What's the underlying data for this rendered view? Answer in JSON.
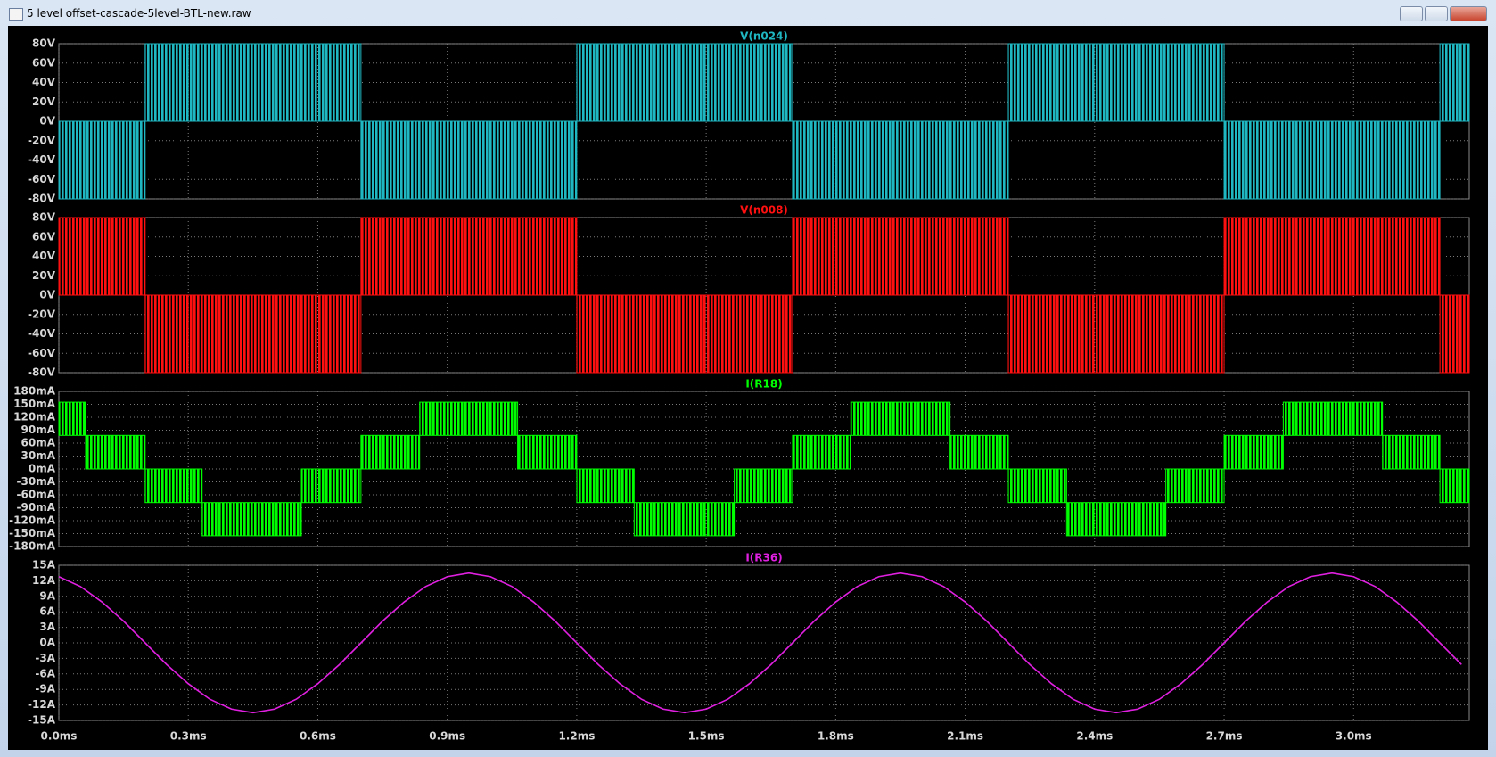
{
  "window": {
    "title": "5 level offset-cascade-5level-BTL-new.raw"
  },
  "chart_data": [
    {
      "type": "step",
      "title": "V(n024)",
      "color": "#1fb8c2",
      "bins": [
        0,
        0.2,
        0.7,
        1.2,
        1.7,
        2.2,
        2.7,
        3.2,
        3.268
      ],
      "low": [
        -80,
        0,
        -80,
        0,
        -80,
        0,
        -80,
        0
      ],
      "high": [
        0,
        80,
        0,
        80,
        0,
        80,
        0,
        80
      ],
      "ylim": [
        -80,
        80
      ],
      "yticks": [
        {
          "value": -80,
          "label": "-80V"
        },
        {
          "value": -60,
          "label": "-60V"
        },
        {
          "value": -40,
          "label": "-40V"
        },
        {
          "value": -20,
          "label": "-20V"
        },
        {
          "value": 0,
          "label": "0V"
        },
        {
          "value": 20,
          "label": "20V"
        },
        {
          "value": 40,
          "label": "40V"
        },
        {
          "value": 60,
          "label": "60V"
        },
        {
          "value": 80,
          "label": "80V"
        }
      ]
    },
    {
      "type": "step",
      "title": "V(n008)",
      "color": "#ff1010",
      "bins": [
        0,
        0.2,
        0.7,
        1.2,
        1.7,
        2.2,
        2.7,
        3.2,
        3.268
      ],
      "low": [
        0,
        -80,
        0,
        -80,
        0,
        -80,
        0,
        -80
      ],
      "high": [
        80,
        0,
        80,
        0,
        80,
        0,
        80,
        0
      ],
      "ylim": [
        -80,
        80
      ],
      "yticks": [
        {
          "value": -80,
          "label": "-80V"
        },
        {
          "value": -60,
          "label": "-60V"
        },
        {
          "value": -40,
          "label": "-40V"
        },
        {
          "value": -20,
          "label": "-20V"
        },
        {
          "value": 0,
          "label": "0V"
        },
        {
          "value": 20,
          "label": "20V"
        },
        {
          "value": 40,
          "label": "40V"
        },
        {
          "value": 60,
          "label": "60V"
        },
        {
          "value": 80,
          "label": "80V"
        }
      ]
    },
    {
      "type": "step",
      "title": "I(R18)",
      "color": "#00ff00",
      "bins": [
        0,
        0.062,
        0.2,
        0.332,
        0.562,
        0.7,
        0.836,
        1.063,
        1.2,
        1.333,
        1.565,
        1.7,
        1.835,
        2.065,
        2.2,
        2.335,
        2.565,
        2.7,
        2.837,
        3.067,
        3.2,
        3.268
      ],
      "low": [
        78,
        0,
        -78,
        -155,
        -78,
        0,
        78,
        0,
        -78,
        -155,
        -78,
        0,
        78,
        0,
        -78,
        -155,
        -78,
        0,
        78,
        0,
        -78
      ],
      "high": [
        155,
        78,
        0,
        -78,
        0,
        78,
        155,
        78,
        0,
        -78,
        0,
        78,
        155,
        78,
        0,
        -78,
        0,
        78,
        155,
        78,
        0
      ],
      "ylim": [
        -180,
        180
      ],
      "yticks": [
        {
          "value": -180,
          "label": "-180mA"
        },
        {
          "value": -150,
          "label": "-150mA"
        },
        {
          "value": -120,
          "label": "-120mA"
        },
        {
          "value": -90,
          "label": "-90mA"
        },
        {
          "value": -60,
          "label": "-60mA"
        },
        {
          "value": -30,
          "label": "-30mA"
        },
        {
          "value": 0,
          "label": "0mA"
        },
        {
          "value": 30,
          "label": "30mA"
        },
        {
          "value": 60,
          "label": "60mA"
        },
        {
          "value": 90,
          "label": "90mA"
        },
        {
          "value": 120,
          "label": "120mA"
        },
        {
          "value": 150,
          "label": "150mA"
        },
        {
          "value": 180,
          "label": "180mA"
        }
      ]
    },
    {
      "type": "line",
      "title": "I(R36)",
      "color": "#e020e0",
      "x": [
        0,
        0.05,
        0.1,
        0.15,
        0.2,
        0.25,
        0.3,
        0.35,
        0.4,
        0.45,
        0.5,
        0.55,
        0.6,
        0.65,
        0.7,
        0.75,
        0.8,
        0.85,
        0.9,
        0.95,
        1,
        1.05,
        1.1,
        1.15,
        1.2,
        1.25,
        1.3,
        1.35,
        1.4,
        1.45,
        1.5,
        1.55,
        1.6,
        1.65,
        1.7,
        1.75,
        1.8,
        1.85,
        1.9,
        1.95,
        2,
        2.05,
        2.1,
        2.15,
        2.2,
        2.25,
        2.3,
        2.35,
        2.4,
        2.45,
        2.5,
        2.55,
        2.6,
        2.65,
        2.7,
        2.75,
        2.8,
        2.85,
        2.9,
        2.95,
        3,
        3.05,
        3.1,
        3.15,
        3.2,
        3.25
      ],
      "values": [
        12.8,
        10.9,
        7.9,
        4.2,
        0,
        -4.2,
        -7.9,
        -10.9,
        -12.8,
        -13.5,
        -12.8,
        -10.9,
        -7.9,
        -4.2,
        0,
        4.2,
        7.9,
        10.9,
        12.8,
        13.5,
        12.8,
        10.9,
        7.9,
        4.2,
        0,
        -4.2,
        -7.9,
        -10.9,
        -12.8,
        -13.5,
        -12.8,
        -10.9,
        -7.9,
        -4.2,
        0,
        4.2,
        7.9,
        10.9,
        12.8,
        13.5,
        12.8,
        10.9,
        7.9,
        4.2,
        0,
        -4.2,
        -7.9,
        -10.9,
        -12.8,
        -13.5,
        -12.8,
        -10.9,
        -7.9,
        -4.2,
        0,
        4.2,
        7.9,
        10.9,
        12.8,
        13.5,
        12.8,
        10.9,
        7.9,
        4.2,
        0,
        -4.2
      ],
      "xlim": [
        0,
        3.268
      ],
      "xticks": [
        {
          "value": 0,
          "label": "0.0ms"
        },
        {
          "value": 0.3,
          "label": "0.3ms"
        },
        {
          "value": 0.6,
          "label": "0.6ms"
        },
        {
          "value": 0.9,
          "label": "0.9ms"
        },
        {
          "value": 1.2,
          "label": "1.2ms"
        },
        {
          "value": 1.5,
          "label": "1.5ms"
        },
        {
          "value": 1.8,
          "label": "1.8ms"
        },
        {
          "value": 2.1,
          "label": "2.1ms"
        },
        {
          "value": 2.4,
          "label": "2.4ms"
        },
        {
          "value": 2.7,
          "label": "2.7ms"
        },
        {
          "value": 3.0,
          "label": "3.0ms"
        }
      ],
      "ylim": [
        -15,
        15
      ],
      "yticks": [
        {
          "value": -15,
          "label": "-15A"
        },
        {
          "value": -12,
          "label": "-12A"
        },
        {
          "value": -9,
          "label": "-9A"
        },
        {
          "value": -6,
          "label": "-6A"
        },
        {
          "value": -3,
          "label": "-3A"
        },
        {
          "value": 0,
          "label": "0A"
        },
        {
          "value": 3,
          "label": "3A"
        },
        {
          "value": 6,
          "label": "6A"
        },
        {
          "value": 9,
          "label": "9A"
        },
        {
          "value": 12,
          "label": "12A"
        },
        {
          "value": 15,
          "label": "15A"
        }
      ]
    }
  ]
}
